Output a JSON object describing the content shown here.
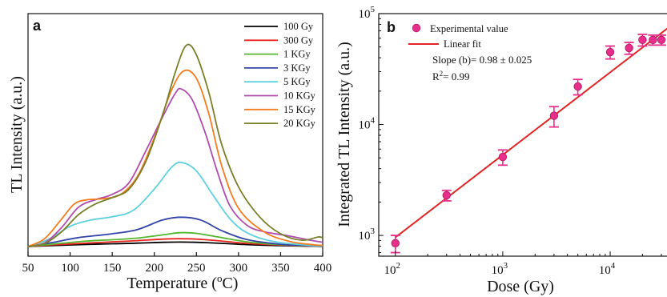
{
  "chart_data": [
    {
      "type": "line",
      "panel_label": "a",
      "xlabel": "Temperature (",
      "xlabel_sup": "o",
      "xlabel_end": "C)",
      "ylabel": "TL Intensity (a.u.)",
      "xlim": [
        50,
        400
      ],
      "xticks": [
        50,
        100,
        150,
        200,
        250,
        300,
        350,
        400
      ],
      "legend_position": "top-right",
      "series": [
        {
          "name": "100 Gy",
          "color": "#000000",
          "x": [
            50,
            80,
            120,
            150,
            180,
            210,
            230,
            250,
            280,
            310,
            350,
            380,
            395,
            400
          ],
          "y": [
            0.0,
            0.5,
            1.0,
            1.3,
            1.6,
            2.0,
            2.1,
            2.0,
            1.5,
            0.9,
            0.4,
            0.2,
            0.1,
            0.05
          ]
        },
        {
          "name": "300 Gy",
          "color": "#e8241d",
          "x": [
            50,
            80,
            120,
            150,
            180,
            210,
            230,
            250,
            280,
            310,
            350,
            380,
            395,
            400
          ],
          "y": [
            0.0,
            0.8,
            1.6,
            2.2,
            2.8,
            3.5,
            3.7,
            3.5,
            2.6,
            1.5,
            0.7,
            0.3,
            0.15,
            0.1
          ]
        },
        {
          "name": "1 KGy",
          "color": "#55b62f",
          "x": [
            50,
            80,
            120,
            150,
            180,
            210,
            230,
            250,
            280,
            310,
            350,
            380,
            395,
            400
          ],
          "y": [
            0.0,
            1.2,
            2.6,
            3.2,
            4.0,
            5.5,
            6.5,
            6.2,
            4.2,
            2.2,
            0.9,
            0.4,
            0.2,
            0.1
          ]
        },
        {
          "name": "3 KGy",
          "color": "#3345a8",
          "x": [
            50,
            80,
            110,
            150,
            180,
            210,
            232,
            255,
            280,
            310,
            350,
            380,
            395,
            400
          ],
          "y": [
            0.0,
            2.0,
            4.2,
            6.0,
            8.0,
            12.5,
            13.8,
            12.5,
            7.5,
            3.3,
            1.1,
            0.5,
            0.2,
            0.1
          ]
        },
        {
          "name": "5 KGy",
          "color": "#5fd0dd",
          "x": [
            50,
            75,
            100,
            125,
            150,
            175,
            200,
            220,
            232,
            250,
            270,
            290,
            310,
            340,
            380,
            400
          ],
          "y": [
            0.0,
            3.5,
            9.5,
            12.5,
            14.0,
            17.0,
            27.0,
            37.0,
            39.5,
            35.5,
            24.0,
            13.0,
            6.5,
            2.5,
            0.7,
            0.3
          ]
        },
        {
          "name": "10 KGy",
          "color": "#b04cae",
          "x": [
            50,
            70,
            90,
            110,
            130,
            150,
            170,
            190,
            210,
            225,
            232,
            245,
            260,
            275,
            290,
            310,
            330,
            360,
            385,
            400
          ],
          "y": [
            0.0,
            1.8,
            9.0,
            18.5,
            22.0,
            24.5,
            30.0,
            45.0,
            61.0,
            72.0,
            74.0,
            69.0,
            54.0,
            35.0,
            19.0,
            10.0,
            7.0,
            5.0,
            3.0,
            2.0
          ]
        },
        {
          "name": "15 KGy",
          "color": "#f47b1e",
          "x": [
            50,
            70,
            90,
            105,
            120,
            140,
            160,
            180,
            200,
            220,
            235,
            250,
            265,
            280,
            300,
            330,
            360,
            385,
            400
          ],
          "y": [
            0.0,
            3.8,
            13.0,
            20.0,
            22.0,
            22.5,
            24.5,
            33.0,
            51.0,
            73.0,
            82.5,
            79.0,
            62.0,
            38.0,
            18.0,
            7.0,
            2.5,
            1.0,
            0.5
          ]
        },
        {
          "name": "20 KGy",
          "color": "#7a7f2a",
          "x": [
            50,
            70,
            90,
            110,
            130,
            150,
            170,
            190,
            210,
            225,
            238,
            250,
            265,
            280,
            300,
            325,
            350,
            375,
            395,
            400
          ],
          "y": [
            0.0,
            1.5,
            7.0,
            15.0,
            20.0,
            23.0,
            27.0,
            40.0,
            62.0,
            82.0,
            94.5,
            90.0,
            72.0,
            48.0,
            28.0,
            14.0,
            6.0,
            3.0,
            4.5,
            4.0
          ]
        }
      ]
    },
    {
      "type": "scatter",
      "panel_label": "b",
      "xlabel": "Dose (Gy)",
      "ylabel": "Integrated TL Intensity (a.u.)",
      "xscale": "log",
      "yscale": "log",
      "xlim": [
        70,
        35000
      ],
      "ylim": [
        650,
        100000
      ],
      "xtick_labels": [
        {
          "base": "10",
          "exp": "2",
          "value": 100
        },
        {
          "base": "10",
          "exp": "3",
          "value": 1000
        },
        {
          "base": "10",
          "exp": "4",
          "value": 10000
        }
      ],
      "ytick_labels": [
        {
          "base": "10",
          "exp": "3",
          "value": 1000
        },
        {
          "base": "10",
          "exp": "4",
          "value": 10000
        },
        {
          "base": "10",
          "exp": "5",
          "value": 100000
        }
      ],
      "legend_position": "top-left",
      "legend": [
        "Experimental value",
        "Linear fit"
      ],
      "annotation_slope": "Slope (b)= 0.98 ± 0.025",
      "annotation_r2_prefix": "R",
      "annotation_r2_sup": "2",
      "annotation_r2_suffix": "= 0.99",
      "marker_color": "#e62e8a",
      "fit_color": "#e02424",
      "points": [
        {
          "x": 100,
          "y": 850,
          "err": 150
        },
        {
          "x": 300,
          "y": 2300,
          "err": 250
        },
        {
          "x": 1000,
          "y": 5100,
          "err": 800
        },
        {
          "x": 3000,
          "y": 12000,
          "err": 2500
        },
        {
          "x": 5000,
          "y": 22000,
          "err": 3500
        },
        {
          "x": 10000,
          "y": 45000,
          "err": 6000
        },
        {
          "x": 15000,
          "y": 49000,
          "err": 6000
        },
        {
          "x": 20000,
          "y": 58000,
          "err": 7000
        },
        {
          "x": 25000,
          "y": 58000,
          "err": 6000
        },
        {
          "x": 30000,
          "y": 58000,
          "err": 6000
        }
      ],
      "fit_line": {
        "x": [
          100,
          35000
        ],
        "y": [
          960,
          75000
        ]
      }
    }
  ]
}
